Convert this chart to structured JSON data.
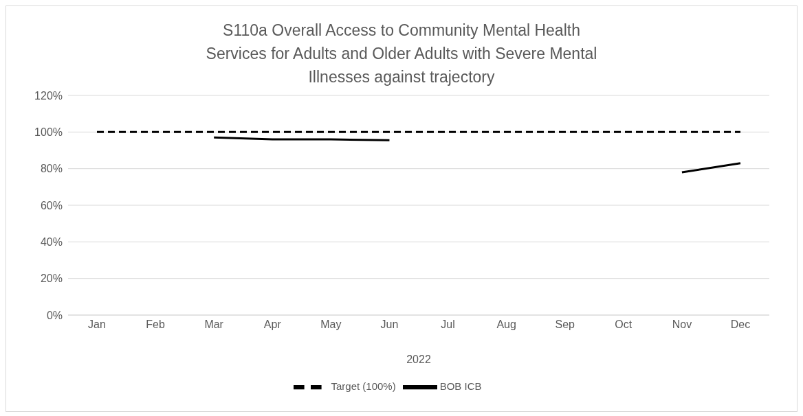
{
  "chart_data": {
    "type": "line",
    "title": "S110a Overall Access to Community Mental Health Services for Adults and Older Adults with Severe Mental Illnesses  against trajectory",
    "xlabel": "2022",
    "categories": [
      "Jan",
      "Feb",
      "Mar",
      "Apr",
      "May",
      "Jun",
      "Jul",
      "Aug",
      "Sep",
      "Oct",
      "Nov",
      "Dec"
    ],
    "series": [
      {
        "name": "Target (100%)",
        "color": "#000000",
        "line_style": "dashed",
        "values": [
          100,
          100,
          100,
          100,
          100,
          100,
          100,
          100,
          100,
          100,
          100,
          100
        ]
      },
      {
        "name": "BOB ICB",
        "color": "#000000",
        "line_style": "solid",
        "values": [
          null,
          null,
          97,
          96,
          96,
          95.5,
          null,
          null,
          null,
          null,
          78,
          83
        ]
      }
    ],
    "ylim": [
      0,
      120
    ],
    "yticks": [
      {
        "value": 0,
        "label": "0%"
      },
      {
        "value": 20,
        "label": "20%"
      },
      {
        "value": 40,
        "label": "40%"
      },
      {
        "value": 60,
        "label": "60%"
      },
      {
        "value": 80,
        "label": "80%"
      },
      {
        "value": 100,
        "label": "100%"
      },
      {
        "value": 120,
        "label": "120%"
      }
    ],
    "grid": "y",
    "legend": "bottom",
    "marker": "none"
  }
}
